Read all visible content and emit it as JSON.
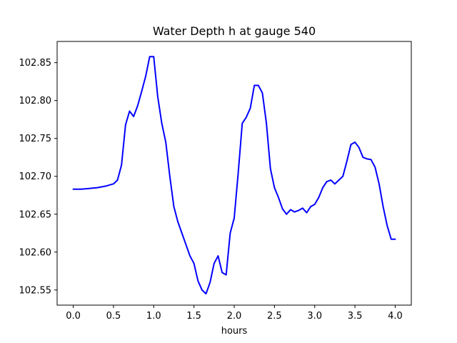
{
  "chart_data": {
    "type": "line",
    "title": "Water Depth h at gauge 540",
    "xlabel": "hours",
    "ylabel": "",
    "xlim": [
      -0.2,
      4.2
    ],
    "ylim": [
      102.53,
      102.878
    ],
    "xticks": [
      0.0,
      0.5,
      1.0,
      1.5,
      2.0,
      2.5,
      3.0,
      3.5,
      4.0
    ],
    "xtick_labels": [
      "0.0",
      "0.5",
      "1.0",
      "1.5",
      "2.0",
      "2.5",
      "3.0",
      "3.5",
      "4.0"
    ],
    "yticks": [
      102.55,
      102.6,
      102.65,
      102.7,
      102.75,
      102.8,
      102.85
    ],
    "ytick_labels": [
      "102.55",
      "102.60",
      "102.65",
      "102.70",
      "102.75",
      "102.80",
      "102.85"
    ],
    "grid": false,
    "series": [
      {
        "color": "#0000ff",
        "x": [
          0.0,
          0.1,
          0.2,
          0.3,
          0.4,
          0.5,
          0.55,
          0.6,
          0.65,
          0.7,
          0.75,
          0.8,
          0.85,
          0.9,
          0.95,
          1.0,
          1.05,
          1.1,
          1.15,
          1.2,
          1.25,
          1.3,
          1.35,
          1.4,
          1.45,
          1.5,
          1.55,
          1.6,
          1.65,
          1.7,
          1.75,
          1.8,
          1.85,
          1.9,
          1.95,
          2.0,
          2.05,
          2.1,
          2.15,
          2.2,
          2.25,
          2.3,
          2.35,
          2.4,
          2.45,
          2.5,
          2.55,
          2.6,
          2.65,
          2.7,
          2.75,
          2.8,
          2.85,
          2.9,
          2.95,
          3.0,
          3.05,
          3.1,
          3.15,
          3.2,
          3.25,
          3.3,
          3.35,
          3.4,
          3.45,
          3.5,
          3.55,
          3.6,
          3.65,
          3.7,
          3.75,
          3.8,
          3.85,
          3.9,
          3.95,
          4.0
        ],
        "y": [
          102.683,
          102.683,
          102.684,
          102.685,
          102.687,
          102.69,
          102.695,
          102.715,
          102.768,
          102.786,
          102.779,
          102.793,
          102.812,
          102.832,
          102.858,
          102.858,
          102.805,
          102.77,
          102.745,
          102.7,
          102.66,
          102.64,
          102.625,
          102.61,
          102.595,
          102.585,
          102.562,
          102.55,
          102.545,
          102.56,
          102.585,
          102.595,
          102.573,
          102.57,
          102.625,
          102.645,
          102.705,
          102.77,
          102.778,
          102.79,
          102.82,
          102.82,
          102.81,
          102.77,
          102.71,
          102.685,
          102.672,
          102.657,
          102.65,
          102.656,
          102.653,
          102.655,
          102.658,
          102.652,
          102.66,
          102.663,
          102.672,
          102.685,
          102.693,
          102.695,
          102.69,
          102.695,
          102.7,
          102.72,
          102.742,
          102.745,
          102.738,
          102.725,
          102.723,
          102.722,
          102.712,
          102.69,
          102.66,
          102.635,
          102.617,
          102.617
        ]
      }
    ]
  }
}
